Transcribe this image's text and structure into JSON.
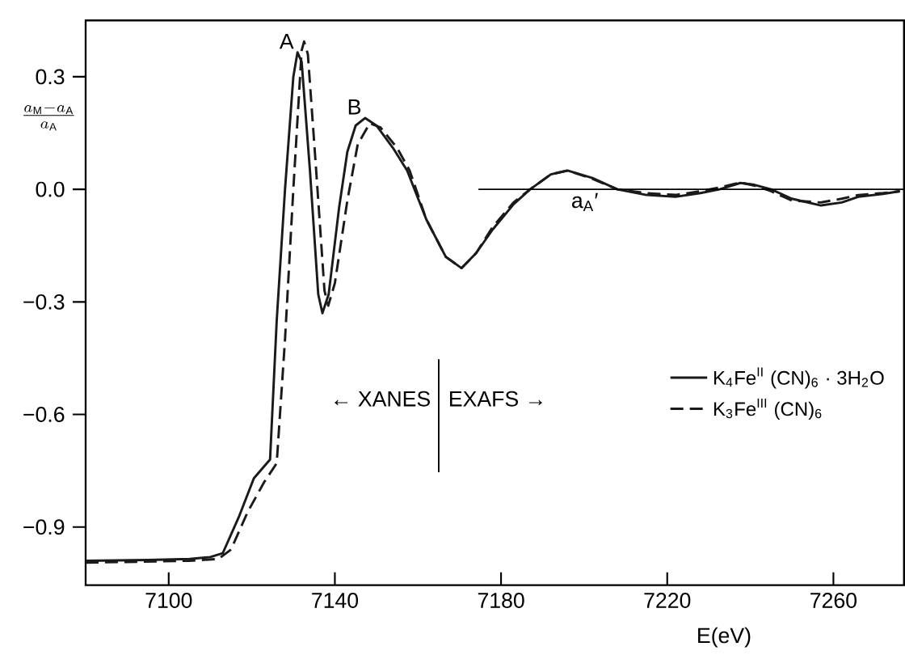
{
  "chart_data": {
    "type": "line",
    "xlabel": "E(eV)",
    "ylabel": "\\frac{a_{\\mathrm{M}}-a_{\\mathrm{A}}}{a_{\\mathrm{A}}}",
    "xlim": [
      7080,
      7277
    ],
    "ylim": [
      -1.055,
      0.45
    ],
    "xticks": [
      7100,
      7140,
      7180,
      7220,
      7260
    ],
    "yticks": [
      {
        "value": -0.9,
        "label": "−0.9"
      },
      {
        "value": -0.6,
        "label": "−0.6"
      },
      {
        "value": -0.3,
        "label": "−0.3"
      },
      {
        "value": 0,
        "label": "0.0"
      },
      {
        "value": 0.3,
        "label": "0.3"
      }
    ],
    "grid": false,
    "legend": "right",
    "marker": "none",
    "series": [
      {
        "name": "K$_{4}$Fe$^{II}$ (CN)$_{6}$ · 3H$_{2}$O",
        "color": "#1a1a1a",
        "line_style": "solid",
        "x": [
          7080,
          7095,
          7105,
          7110,
          7113,
          7117,
          7120.5,
          7124.4,
          7126,
          7128,
          7130,
          7131,
          7132,
          7134,
          7136,
          7137,
          7138.5,
          7141,
          7143,
          7145,
          7147.3,
          7150,
          7154,
          7157.4,
          7162,
          7166.7,
          7170.5,
          7174,
          7178,
          7183,
          7187,
          7192,
          7196,
          7202,
          7208,
          7215,
          7222,
          7228,
          7232.6,
          7237.6,
          7241,
          7245,
          7250,
          7257,
          7262,
          7266,
          7272,
          7276
        ],
        "values": [
          -0.99,
          -0.988,
          -0.985,
          -0.98,
          -0.97,
          -0.87,
          -0.77,
          -0.72,
          -0.35,
          0.0,
          0.3,
          0.365,
          0.34,
          0.05,
          -0.28,
          -0.33,
          -0.28,
          -0.05,
          0.1,
          0.17,
          0.19,
          0.17,
          0.11,
          0.05,
          -0.08,
          -0.18,
          -0.21,
          -0.17,
          -0.107,
          -0.04,
          0.0,
          0.04,
          0.05,
          0.03,
          0.0,
          -0.015,
          -0.02,
          -0.01,
          0.0,
          0.017,
          0.012,
          0.0,
          -0.025,
          -0.043,
          -0.035,
          -0.02,
          -0.012,
          -0.005
        ]
      },
      {
        "name": "K$_{3}$Fe$^{III}$ (CN)$_{6}$",
        "color": "#1a1a1a",
        "line_style": "dashed",
        "x": [
          7080,
          7105,
          7112,
          7115,
          7119,
          7123,
          7126,
          7128,
          7130,
          7132,
          7132.6,
          7133.5,
          7135.5,
          7137.5,
          7138.4,
          7140,
          7143,
          7145.5,
          7148.4,
          7151,
          7155,
          7158,
          7162,
          7166.7,
          7170.5,
          7174,
          7178,
          7183,
          7187,
          7192,
          7196,
          7202,
          7208,
          7215,
          7222,
          7228,
          7232.6,
          7237.6,
          7241,
          7245,
          7250,
          7257,
          7262,
          7266,
          7272,
          7276
        ],
        "values": [
          -0.995,
          -0.99,
          -0.985,
          -0.96,
          -0.86,
          -0.78,
          -0.73,
          -0.4,
          0.0,
          0.37,
          0.394,
          0.36,
          0.05,
          -0.27,
          -0.31,
          -0.25,
          -0.03,
          0.12,
          0.176,
          0.165,
          0.11,
          0.05,
          -0.08,
          -0.18,
          -0.21,
          -0.17,
          -0.1,
          -0.035,
          0.0,
          0.04,
          0.05,
          0.028,
          0.0,
          -0.01,
          -0.015,
          -0.005,
          0.005,
          0.018,
          0.01,
          -0.005,
          -0.03,
          -0.035,
          -0.025,
          -0.015,
          -0.01,
          -0.005
        ]
      }
    ],
    "ref_lines": [
      {
        "axis": "y",
        "value": 0
      },
      {
        "axis": "x",
        "value": 7165
      }
    ],
    "annotations": [
      {
        "text": "A",
        "x": 7131,
        "y": 0.365
      },
      {
        "text": "B",
        "x": 7147.3,
        "y": 0.19
      },
      {
        "text": "a$_{A}$′",
        "x": 7196,
        "y": 0
      },
      "← XANES",
      "EXAFS →"
    ]
  }
}
